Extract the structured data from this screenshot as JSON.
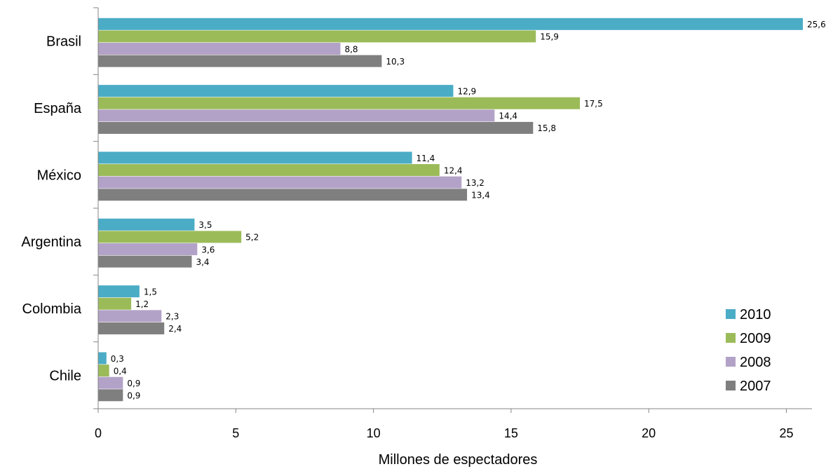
{
  "chart_data": {
    "type": "bar",
    "orientation": "horizontal",
    "categories": [
      "Brasil",
      "España",
      "México",
      "Argentina",
      "Colombia",
      "Chile"
    ],
    "series": [
      {
        "name": "2010",
        "color": "#4bacc6",
        "values": [
          25.6,
          12.9,
          11.4,
          3.5,
          1.5,
          0.3
        ],
        "labels": [
          "25,6",
          "12,9",
          "11,4",
          "3,5",
          "1,5",
          "0,3"
        ]
      },
      {
        "name": "2009",
        "color": "#9bbb59",
        "values": [
          15.9,
          17.5,
          12.4,
          5.2,
          1.2,
          0.4
        ],
        "labels": [
          "15,9",
          "17,5",
          "12,4",
          "5,2",
          "1,2",
          "0,4"
        ]
      },
      {
        "name": "2008",
        "color": "#b3a2c7",
        "values": [
          8.8,
          14.4,
          13.2,
          3.6,
          2.3,
          0.9
        ],
        "labels": [
          "8,8",
          "14,4",
          "13,2",
          "3,6",
          "2,3",
          "0,9"
        ]
      },
      {
        "name": "2007",
        "color": "#7f7f7f",
        "values": [
          10.3,
          15.8,
          13.4,
          3.4,
          2.4,
          0.9
        ],
        "labels": [
          "10,3",
          "15,8",
          "13,4",
          "3,4",
          "2,4",
          "0,9"
        ]
      }
    ],
    "xlim": [
      0,
      25
    ],
    "xticks": [
      "0",
      "5",
      "10",
      "15",
      "20",
      "25"
    ],
    "xlabel": "Millones de espectadores",
    "ylabel": "",
    "title": "",
    "grid": false,
    "legend_position": "bottom-right"
  }
}
